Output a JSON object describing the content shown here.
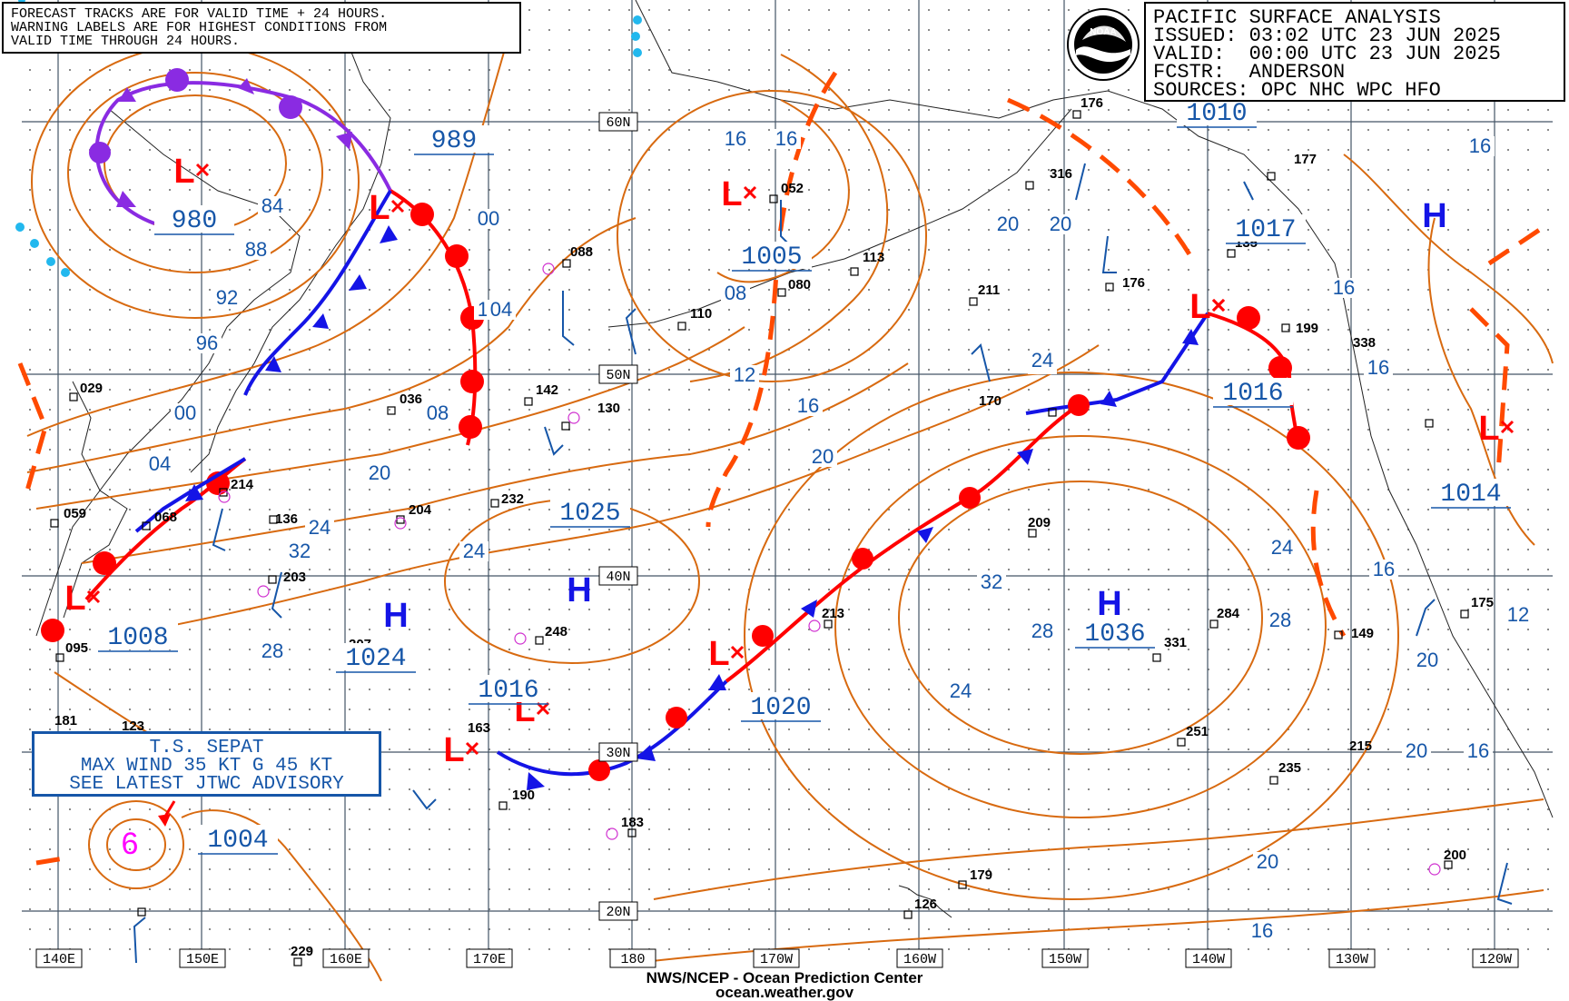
{
  "header": {
    "title": "PACIFIC SURFACE ANALYSIS",
    "issued_label": "ISSUED:",
    "issued_value": "03:02 UTC 23 JUN 2025",
    "valid_label": "VALID:",
    "valid_value": "00:00 UTC 23 JUN 2025",
    "forecaster_label": "FCSTR:",
    "forecaster_value": "ANDERSON",
    "sources_label": "SOURCES:",
    "sources_value": "OPC NHC WPC HFO",
    "logo_text": "NOAA"
  },
  "forecast_note": {
    "line1": "FORECAST TRACKS ARE FOR VALID TIME + 24 HOURS.",
    "line2": "WARNING LABELS ARE FOR HIGHEST CONDITIONS FROM",
    "line3": "VALID TIME THROUGH 24 HOURS."
  },
  "storm_advisory": {
    "line1": "T.S. SEPAT",
    "line2": "MAX WIND 35 KT G 45 KT",
    "line3": "SEE LATEST JTWC ADVISORY",
    "symbol": "tropical-storm-symbol"
  },
  "footer": {
    "line1": "NWS/NCEP - Ocean Prediction Center",
    "line2": "ocean.weather.gov"
  },
  "longitude_labels": [
    "140E",
    "150E",
    "160E",
    "170E",
    "180",
    "170W",
    "160W",
    "150W",
    "140W",
    "130W",
    "120W"
  ],
  "latitude_labels": [
    "60N",
    "50N",
    "40N",
    "30N",
    "20N"
  ],
  "pressure_centers": [
    {
      "type": "L",
      "value": "980"
    },
    {
      "type": "L",
      "value": "989"
    },
    {
      "type": "L",
      "value": "1005"
    },
    {
      "type": "L",
      "value": "1010"
    },
    {
      "type": "L",
      "value": "1008"
    },
    {
      "type": "L",
      "value": "1016"
    },
    {
      "type": "L",
      "value": "1004"
    },
    {
      "type": "L",
      "value": "1020"
    },
    {
      "type": "L",
      "value": "1016"
    },
    {
      "type": "L",
      "value": "1014"
    },
    {
      "type": "H",
      "value": "1017"
    },
    {
      "type": "H",
      "value": "1025"
    },
    {
      "type": "H",
      "value": "1024"
    },
    {
      "type": "H",
      "value": "1036"
    }
  ],
  "isobar_labels": [
    "84",
    "88",
    "92",
    "96",
    "00",
    "04",
    "08",
    "12",
    "16",
    "20",
    "24",
    "28",
    "32",
    "00",
    "04",
    "08",
    "12",
    "16",
    "20",
    "24",
    "08",
    "12",
    "16",
    "20",
    "24",
    "28",
    "32",
    "16",
    "20",
    "24",
    "16",
    "20",
    "24",
    "28",
    "20",
    "16",
    "16",
    "12",
    "16",
    "20",
    "16",
    "24",
    "20",
    "16",
    "16"
  ],
  "station_values": [
    "029",
    "059",
    "068",
    "095",
    "181",
    "123",
    "214",
    "136",
    "203",
    "036",
    "204",
    "142",
    "130",
    "232",
    "088",
    "248",
    "163",
    "190",
    "183",
    "110",
    "052",
    "080",
    "113",
    "213",
    "211",
    "170",
    "176",
    "316",
    "209",
    "176",
    "135",
    "177",
    "199",
    "338",
    "331",
    "284",
    "251",
    "215",
    "235",
    "149",
    "175",
    "200",
    "179",
    "126",
    "229",
    "207"
  ],
  "colors": {
    "isobar": "#d86a10",
    "pressure_label": "#1656a8",
    "cold_front": "#1414e6",
    "warm_front": "#ff0000",
    "occluded_front": "#8a2be2",
    "trough": "#ff4a00",
    "ice": "#22b8ee",
    "grid": "#445566",
    "low_symbol": "#ff0000",
    "high_symbol": "#1414e6"
  }
}
